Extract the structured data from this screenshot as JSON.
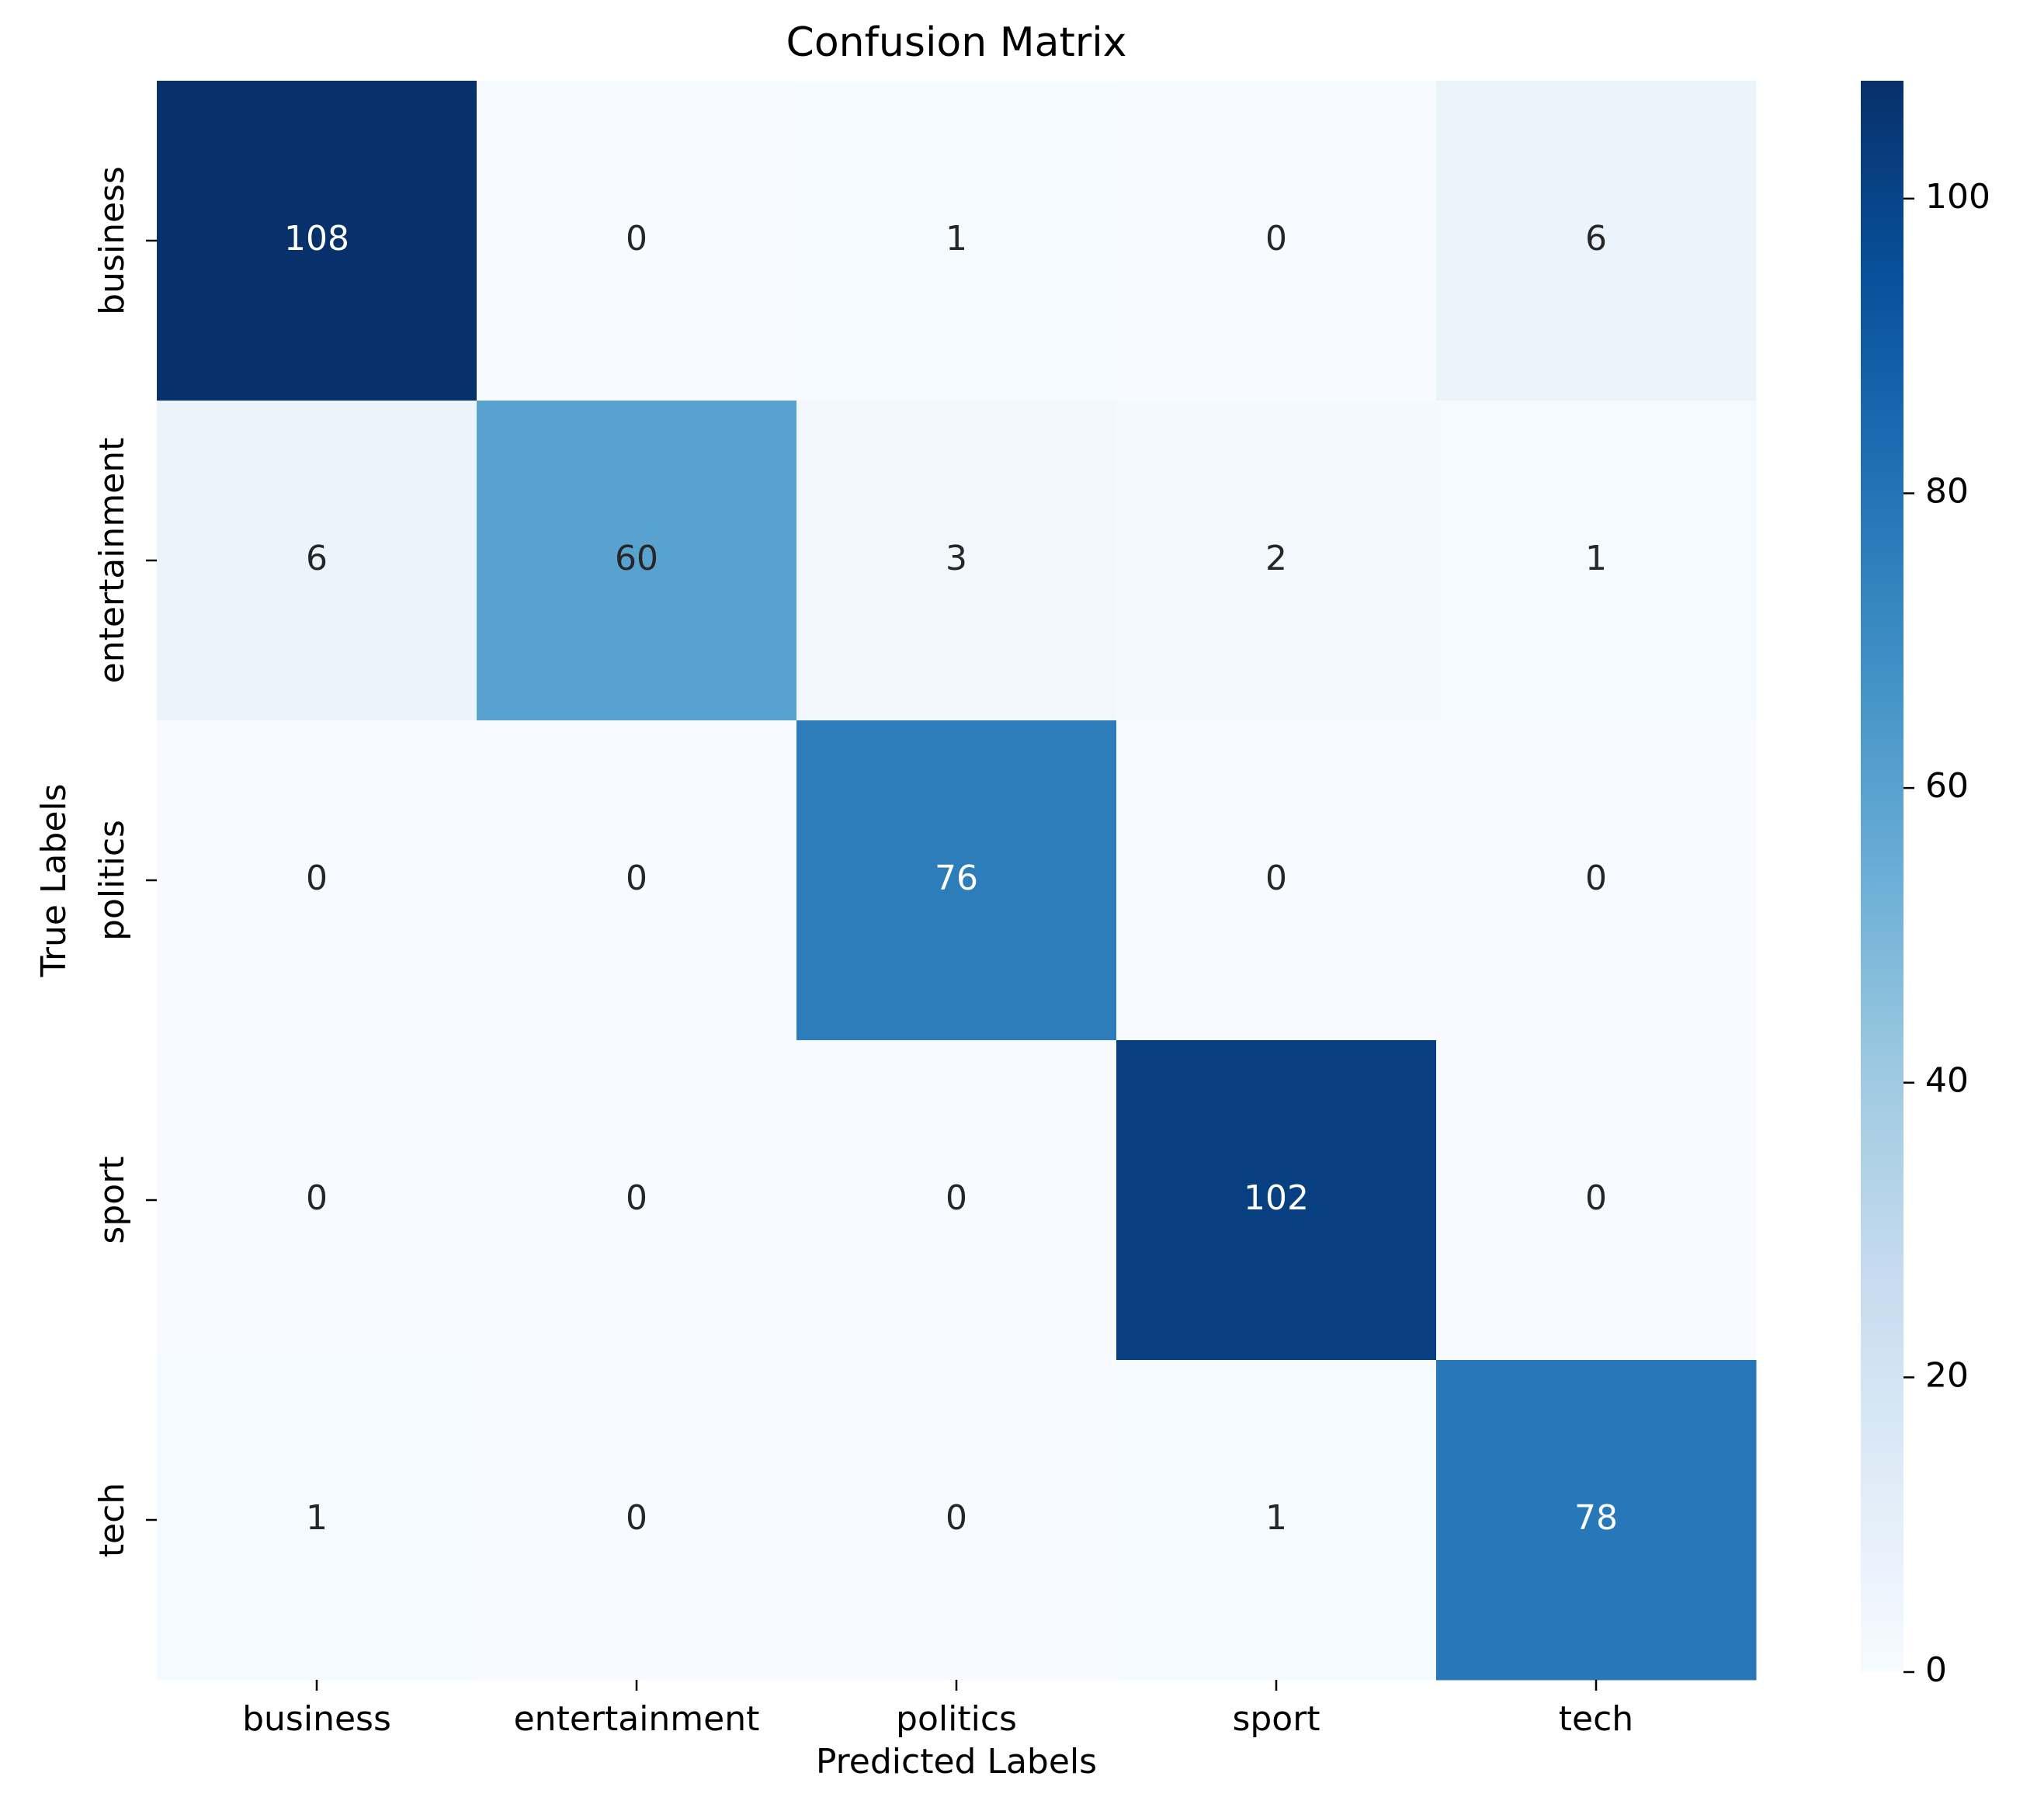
{
  "chart_data": {
    "type": "heatmap",
    "title": "Confusion Matrix",
    "xlabel": "Predicted Labels",
    "ylabel": "True Labels",
    "x_categories": [
      "business",
      "entertainment",
      "politics",
      "sport",
      "tech"
    ],
    "y_categories": [
      "business",
      "entertainment",
      "politics",
      "sport",
      "tech"
    ],
    "values": [
      [
        108,
        0,
        1,
        0,
        6
      ],
      [
        6,
        60,
        3,
        2,
        1
      ],
      [
        0,
        0,
        76,
        0,
        0
      ],
      [
        0,
        0,
        0,
        102,
        0
      ],
      [
        1,
        0,
        0,
        1,
        78
      ]
    ],
    "colormap": "Blues",
    "colorbar": {
      "range": [
        0,
        108
      ],
      "ticks": [
        0,
        20,
        40,
        60,
        80,
        100
      ],
      "tick_labels": [
        "0",
        "20",
        "40",
        "60",
        "80",
        "100"
      ]
    },
    "annotation_text_colors": {
      "dark": "#262626",
      "light": "#ffffff"
    },
    "axis_color": "#000000"
  }
}
